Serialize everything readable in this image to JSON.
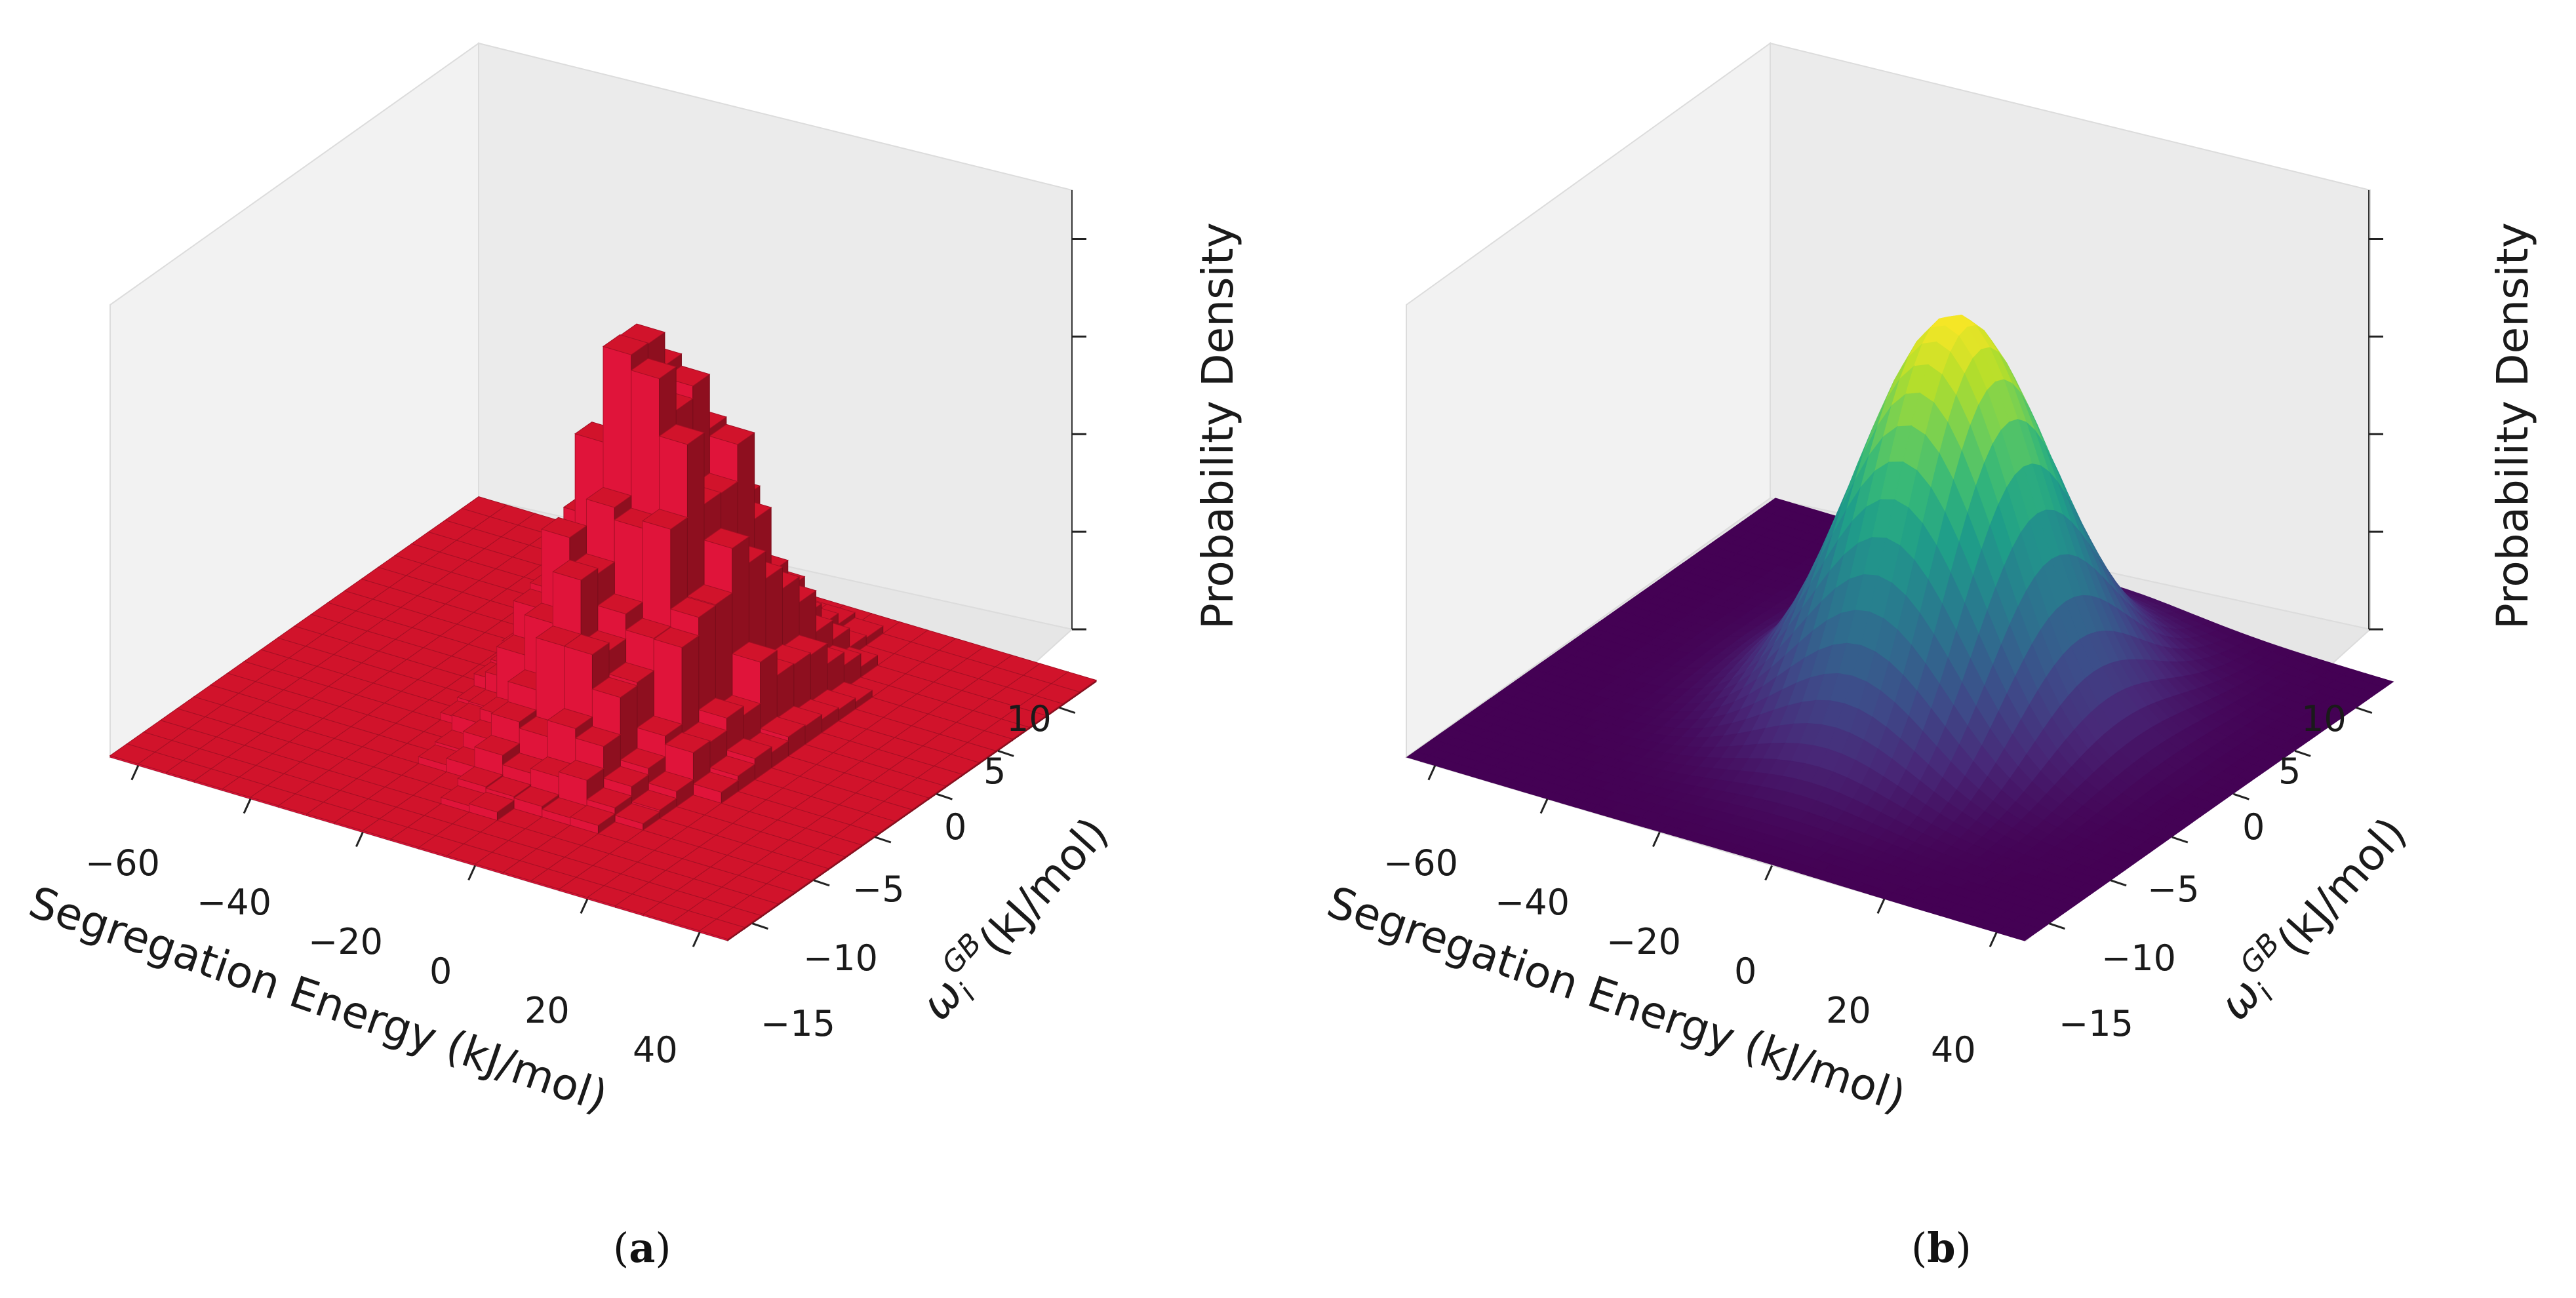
{
  "chart_data": [
    {
      "panel": "(a)",
      "panel_letter": "a",
      "type": "bar3d",
      "x_label": "Segregation Energy (kJ/mol)",
      "y_label": "ω",
      "y_label_sub": "i",
      "y_label_sup": "GB",
      "y_label_unit": "(kJ/mol)",
      "z_label": "Probability Density",
      "x_ticks": [
        "−60",
        "−40",
        "−20",
        "0",
        "20",
        "40"
      ],
      "y_ticks": [
        "−15",
        "−10",
        "−5",
        "0",
        "5",
        "10"
      ],
      "x_range": [
        -65,
        45
      ],
      "y_range": [
        -17,
        13
      ],
      "z_ticks_count": 5,
      "bar_color": "#d1132b",
      "peak": {
        "x": -5,
        "y": 0,
        "relative_height": 1.0
      },
      "distribution": "2D histogram of segregation energy vs ω_i^GB"
    },
    {
      "panel": "(b)",
      "panel_letter": "b",
      "type": "surface3d",
      "colormap": "viridis",
      "x_label": "Segregation Energy (kJ/mol)",
      "y_label": "ω",
      "y_label_sub": "i",
      "y_label_sup": "GB",
      "y_label_unit": "(kJ/mol)",
      "z_label": "Probability Density",
      "x_ticks": [
        "−60",
        "−40",
        "−20",
        "0",
        "20",
        "40"
      ],
      "y_ticks": [
        "−15",
        "−10",
        "−5",
        "0",
        "5",
        "10"
      ],
      "x_range": [
        -65,
        45
      ],
      "y_range": [
        -17,
        13
      ],
      "z_ticks_count": 5,
      "gaussian": {
        "mean_x": -5,
        "mean_y": 0,
        "sigma_x": 14,
        "sigma_y": 5
      }
    }
  ]
}
